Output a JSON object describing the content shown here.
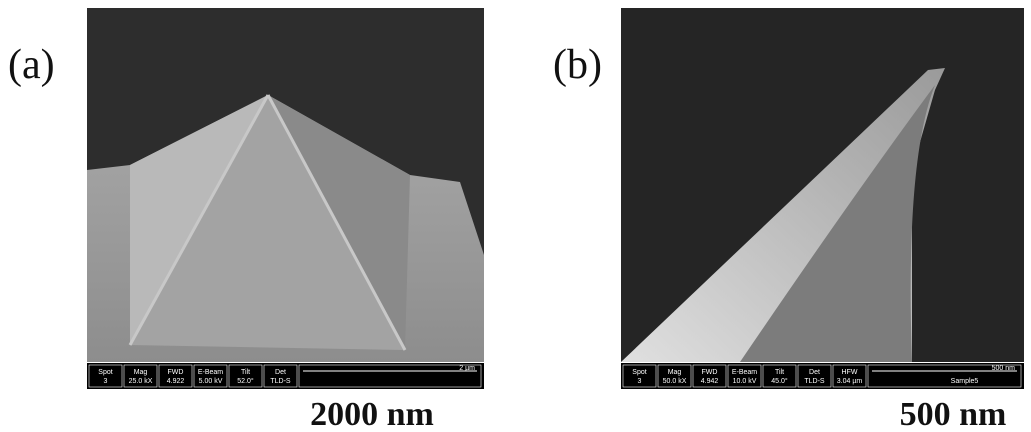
{
  "panels": [
    {
      "label": "(a)",
      "scale_caption": "2000 nm",
      "info": [
        {
          "key": "Spot",
          "value": "3"
        },
        {
          "key": "Mag",
          "value": "25.0 kX"
        },
        {
          "key": "FWD",
          "value": "4.922"
        },
        {
          "key": "E-Beam",
          "value": "5.00 kV"
        },
        {
          "key": "Tilt",
          "value": "52.0°"
        },
        {
          "key": "Det",
          "value": "TLD-S"
        }
      ],
      "bar_scale": "2 µm"
    },
    {
      "label": "(b)",
      "scale_caption": "500 nm",
      "info": [
        {
          "key": "Spot",
          "value": "3"
        },
        {
          "key": "Mag",
          "value": "50.0 kX"
        },
        {
          "key": "FWD",
          "value": "4.942"
        },
        {
          "key": "E-Beam",
          "value": "10.0 kV"
        },
        {
          "key": "Tilt",
          "value": "45.0°"
        },
        {
          "key": "Det",
          "value": "TLD-S"
        },
        {
          "key": "HFW",
          "value": "3.04 µm"
        }
      ],
      "bar_scale": "500 nm",
      "sample": "Sample5"
    }
  ]
}
